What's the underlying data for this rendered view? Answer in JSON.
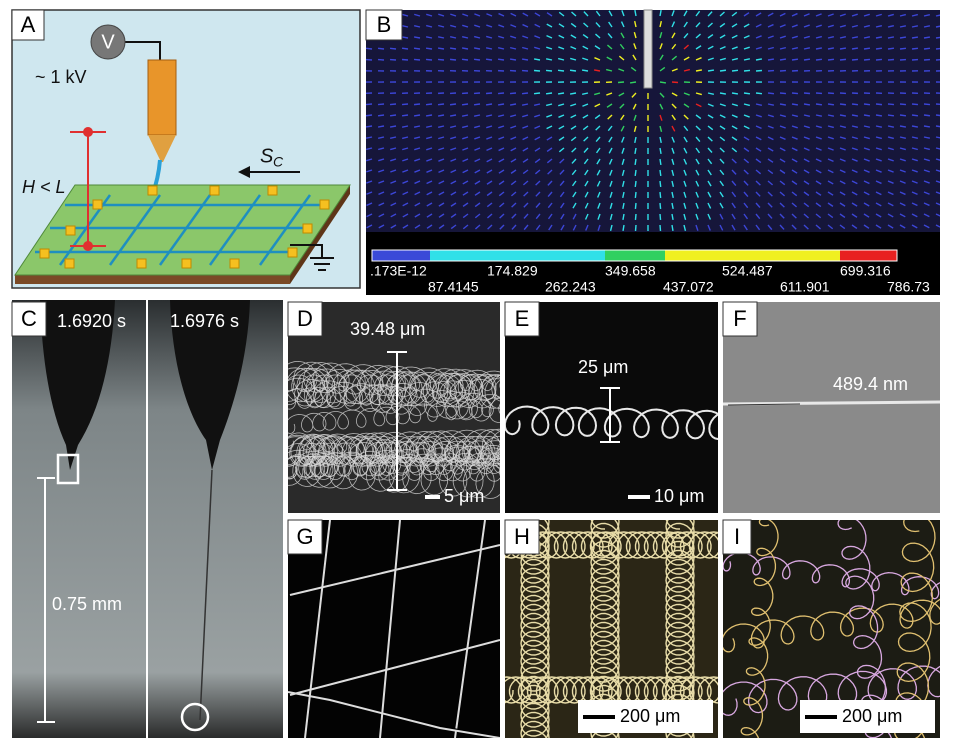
{
  "panels": {
    "a": {
      "label": "A",
      "voltmeter": "V",
      "voltage": "~ 1 kV",
      "speed": "S",
      "speed_subscript": "C",
      "height": "H < L"
    },
    "b": {
      "label": "B",
      "colorbar_labels_top": [
        ".173E-12",
        "174.829",
        "349.658",
        "524.487",
        "699.316"
      ],
      "colorbar_labels_bottom": [
        "87.4145",
        "262.243",
        "437.072",
        "611.901",
        "786.73"
      ]
    },
    "c": {
      "label": "C",
      "time_left": "1.6920 s",
      "time_right": "1.6976 s",
      "scale": "0.75 mm"
    },
    "d": {
      "label": "D",
      "measure": "39.48 μm",
      "scale_bar": "5 μm"
    },
    "e": {
      "label": "E",
      "measure": "25 μm",
      "scale_bar": "10 μm"
    },
    "f": {
      "label": "F",
      "measure": "489.4 nm"
    },
    "g": {
      "label": "G"
    },
    "h": {
      "label": "H",
      "scale_bar": "200 μm"
    },
    "i": {
      "label": "I",
      "scale_bar": "200 μm"
    }
  }
}
